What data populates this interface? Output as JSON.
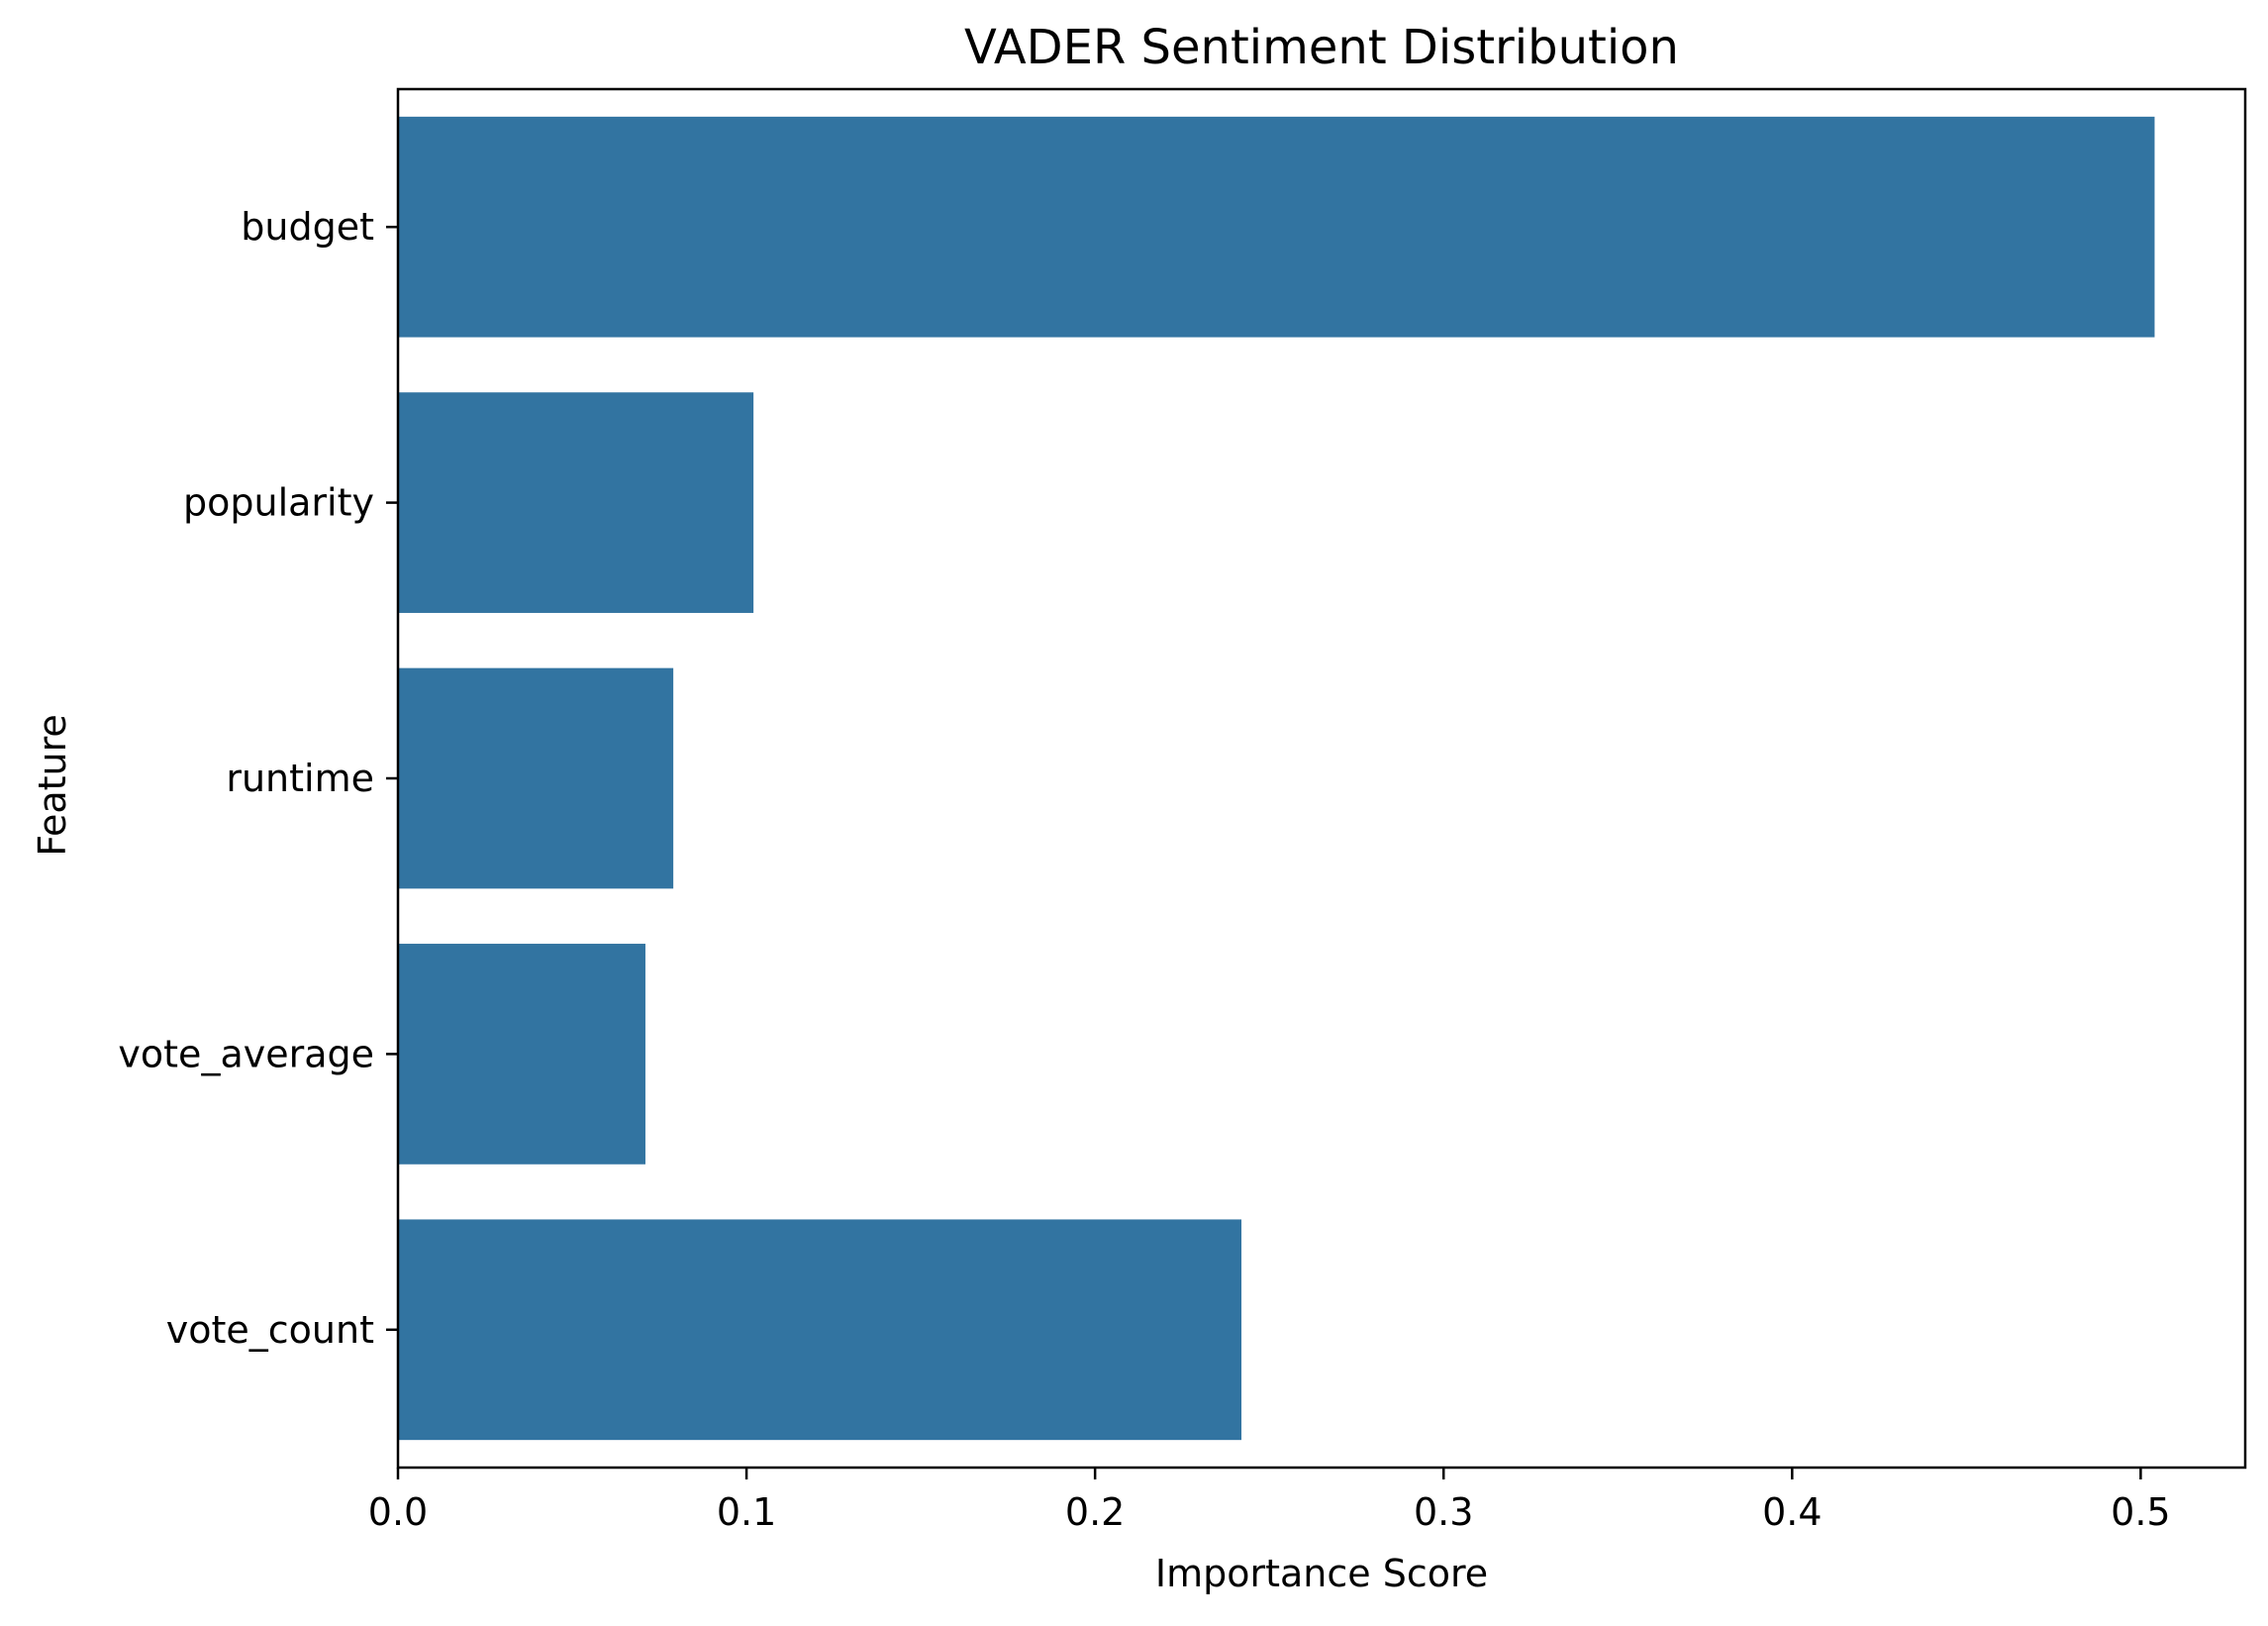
{
  "chart_data": {
    "type": "bar",
    "orientation": "horizontal",
    "title": "VADER Sentiment Distribution",
    "xlabel": "Importance Score",
    "ylabel": "Feature",
    "categories": [
      "budget",
      "popularity",
      "runtime",
      "vote_average",
      "vote_count"
    ],
    "values": [
      0.504,
      0.102,
      0.079,
      0.071,
      0.242
    ],
    "xlim": [
      0,
      0.53
    ],
    "xticks": [
      0.0,
      0.1,
      0.2,
      0.3,
      0.4,
      0.5
    ],
    "xtick_labels": [
      "0.0",
      "0.1",
      "0.2",
      "0.3",
      "0.4",
      "0.5"
    ],
    "grid": false,
    "legend": null,
    "bar_color": "#3274a1"
  }
}
